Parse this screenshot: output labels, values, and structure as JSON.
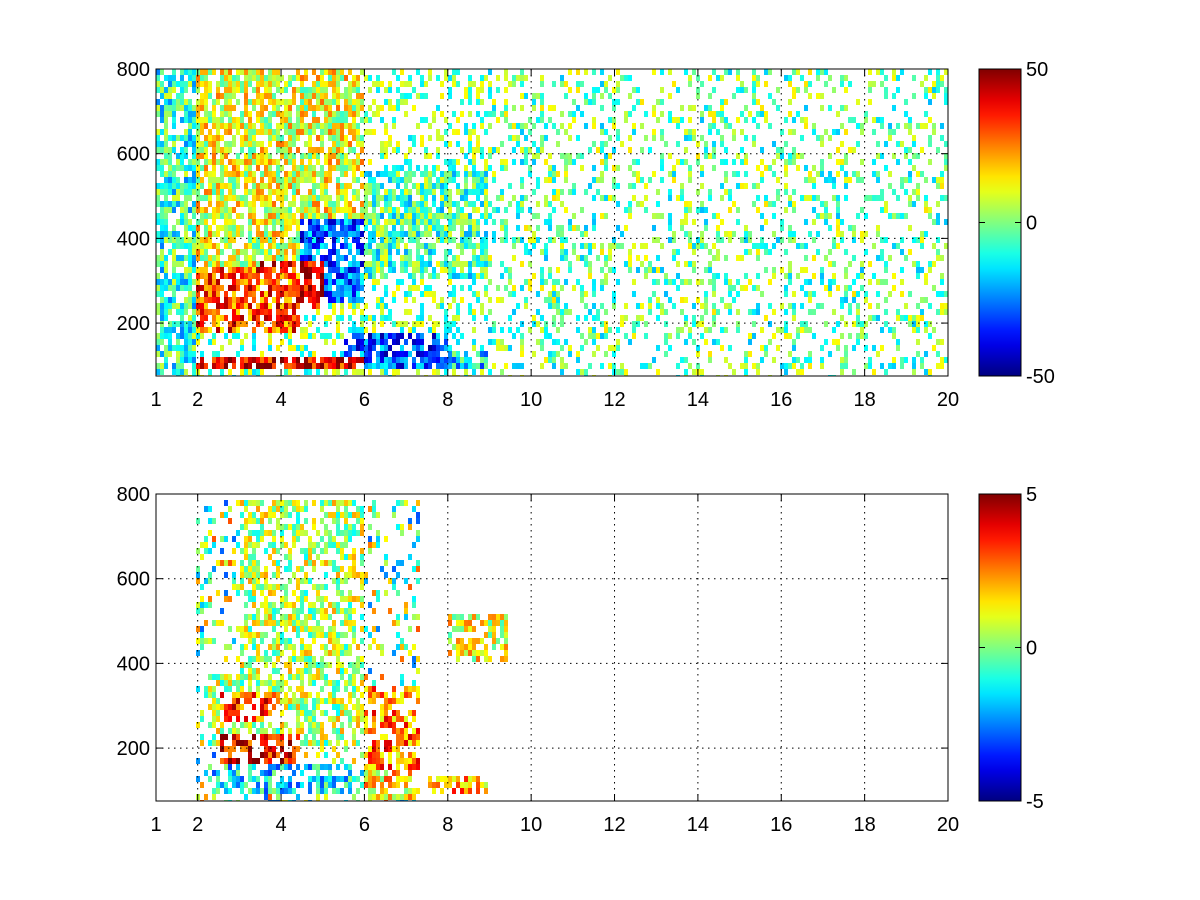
{
  "chart_data": [
    {
      "type": "heatmap",
      "title": "",
      "xlabel": "",
      "ylabel": "",
      "xlim": [
        1,
        20
      ],
      "ylim": [
        75,
        800
      ],
      "x_ticks": [
        1,
        2,
        4,
        6,
        8,
        10,
        12,
        14,
        16,
        18,
        20
      ],
      "y_ticks": [
        200,
        400,
        600,
        800
      ],
      "grid": true,
      "colormap": "jet",
      "color_range": [
        -50,
        50
      ],
      "colorbar_ticks": [
        -50,
        0,
        50
      ],
      "colorbar_placement": "right",
      "regions": [
        {
          "x": [
            2.0,
            4.5
          ],
          "y": [
            180,
            330
          ],
          "value": 30
        },
        {
          "x": [
            3.5,
            5.0
          ],
          "y": [
            230,
            340
          ],
          "value": 42
        },
        {
          "x": [
            4.5,
            6.0
          ],
          "y": [
            250,
            440
          ],
          "value": -28
        },
        {
          "x": [
            2.0,
            6.0
          ],
          "y": [
            85,
            125
          ],
          "value": 40
        },
        {
          "x": [
            5.5,
            8.0
          ],
          "y": [
            85,
            180
          ],
          "value": -30
        },
        {
          "x": [
            7.0,
            9.0
          ],
          "y": [
            85,
            140
          ],
          "value": -15
        },
        {
          "x": [
            2.0,
            6.0
          ],
          "y": [
            330,
            800
          ],
          "value": 10
        },
        {
          "x": [
            6.0,
            9.0
          ],
          "y": [
            300,
            560
          ],
          "value": -5
        },
        {
          "x": [
            1.0,
            2.0
          ],
          "y": [
            75,
            800
          ],
          "value": -8
        },
        {
          "x": [
            9.0,
            20.0
          ],
          "y": [
            75,
            800
          ],
          "value": -2
        }
      ]
    },
    {
      "type": "heatmap",
      "title": "",
      "xlabel": "",
      "ylabel": "",
      "xlim": [
        1,
        20
      ],
      "ylim": [
        75,
        800
      ],
      "x_ticks": [
        1,
        2,
        4,
        6,
        8,
        10,
        12,
        14,
        16,
        18,
        20
      ],
      "y_ticks": [
        200,
        400,
        600,
        800
      ],
      "grid": true,
      "colormap": "jet",
      "color_range": [
        -5,
        5
      ],
      "colorbar_ticks": [
        -5,
        0,
        5
      ],
      "colorbar_placement": "right",
      "regions": [
        {
          "x": [
            2.5,
            4.5
          ],
          "y": [
            160,
            230
          ],
          "value": 4
        },
        {
          "x": [
            2.5,
            4.0
          ],
          "y": [
            260,
            330
          ],
          "value": 3
        },
        {
          "x": [
            2.2,
            6.0
          ],
          "y": [
            200,
            380
          ],
          "value": 0.5
        },
        {
          "x": [
            2.2,
            6.0
          ],
          "y": [
            90,
            160
          ],
          "value": -1.5
        },
        {
          "x": [
            6.0,
            7.3
          ],
          "y": [
            150,
            350
          ],
          "value": 2.5
        },
        {
          "x": [
            6.0,
            7.3
          ],
          "y": [
            80,
            160
          ],
          "value": 1.5
        },
        {
          "x": [
            3.0,
            6.0
          ],
          "y": [
            380,
            780
          ],
          "value": 0.5
        },
        {
          "x": [
            7.5,
            9.0
          ],
          "y": [
            95,
            140
          ],
          "value": 2
        },
        {
          "x": [
            8.0,
            9.4
          ],
          "y": [
            400,
            520
          ],
          "value": 1
        }
      ]
    }
  ]
}
